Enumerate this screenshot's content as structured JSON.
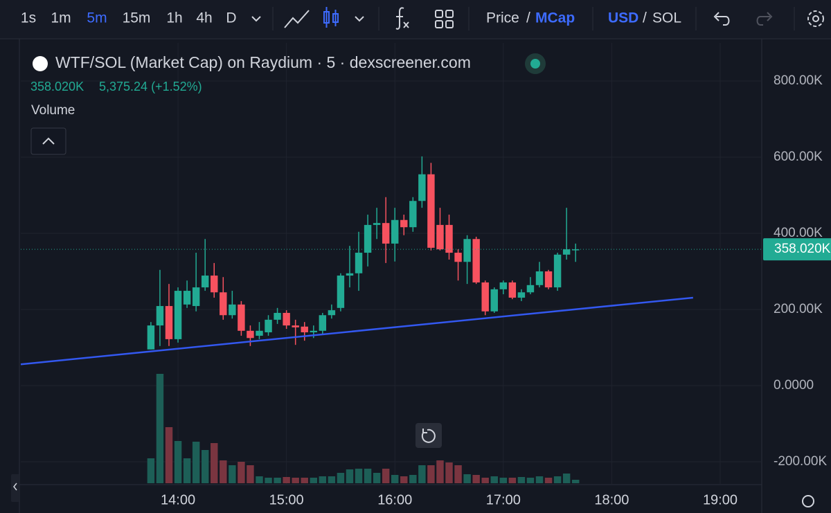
{
  "toolbar": {
    "intervals": [
      "1s",
      "1m",
      "5m",
      "15m",
      "1h",
      "4h",
      "D"
    ],
    "price_mode": [
      "Price",
      "/",
      "MCap"
    ],
    "currency": [
      "USD",
      "/",
      "SOL"
    ]
  },
  "chart_data": {
    "type": "candlestick",
    "title": "WTF/SOL (Market Cap) on Raydium · 5 · dexscreener.com",
    "legend_values": [
      "358.020K",
      "5,375.24 (+1.52%)"
    ],
    "volume_label": "Volume",
    "x": [
      "13:45",
      "13:50",
      "13:55",
      "14:00",
      "14:05",
      "14:10",
      "14:15",
      "14:20",
      "14:25",
      "14:30",
      "14:35",
      "14:40",
      "14:45",
      "14:50",
      "14:55",
      "15:00",
      "15:05",
      "15:10",
      "15:15",
      "15:20",
      "15:25",
      "15:30",
      "15:35",
      "15:40",
      "15:45",
      "15:50",
      "15:55",
      "16:00",
      "16:05",
      "16:10",
      "16:15",
      "16:20",
      "16:25",
      "16:30",
      "16:35",
      "16:40",
      "16:45",
      "16:50",
      "16:55",
      "17:00",
      "17:05",
      "17:10",
      "17:15",
      "17:20",
      "17:25",
      "17:30",
      "17:35",
      "17:40"
    ],
    "open": [
      95000,
      158000,
      209000,
      122000,
      213000,
      209000,
      258000,
      289000,
      245000,
      185000,
      213000,
      144000,
      131000,
      140000,
      173000,
      191000,
      158000,
      155000,
      140000,
      144000,
      185000,
      204000,
      289000,
      295000,
      349000,
      422000,
      427000,
      373000,
      435000,
      416000,
      485000,
      555000,
      422000,
      422000,
      349000,
      325000,
      385000,
      271000,
      195000,
      253000,
      271000,
      231000,
      245000,
      264000,
      300000,
      258000,
      344000,
      356000
    ],
    "high": [
      167000,
      304000,
      267000,
      258000,
      276000,
      349000,
      385000,
      322000,
      285000,
      249000,
      222000,
      158000,
      167000,
      185000,
      204000,
      198000,
      173000,
      167000,
      158000,
      191000,
      213000,
      295000,
      367000,
      404000,
      449000,
      467000,
      495000,
      467000,
      449000,
      495000,
      602000,
      585000,
      467000,
      449000,
      358000,
      395000,
      391000,
      276000,
      258000,
      276000,
      276000,
      253000,
      285000,
      325000,
      304000,
      349000,
      467000,
      373000
    ],
    "low": [
      95000,
      104000,
      104000,
      113000,
      204000,
      195000,
      249000,
      231000,
      173000,
      176000,
      131000,
      104000,
      122000,
      131000,
      162000,
      149000,
      107000,
      118000,
      125000,
      135000,
      176000,
      195000,
      258000,
      249000,
      313000,
      385000,
      322000,
      326000,
      395000,
      404000,
      467000,
      355000,
      355000,
      331000,
      276000,
      267000,
      267000,
      185000,
      191000,
      240000,
      227000,
      222000,
      240000,
      258000,
      253000,
      249000,
      331000,
      325000
    ],
    "close": [
      158000,
      209000,
      122000,
      249000,
      249000,
      258000,
      289000,
      245000,
      185000,
      213000,
      144000,
      125000,
      144000,
      173000,
      191000,
      158000,
      153000,
      140000,
      144000,
      185000,
      198000,
      289000,
      295000,
      349000,
      422000,
      427000,
      373000,
      435000,
      416000,
      485000,
      555000,
      362000,
      358000,
      349000,
      325000,
      385000,
      271000,
      195000,
      253000,
      271000,
      231000,
      245000,
      264000,
      300000,
      258000,
      344000,
      358000,
      358020
    ],
    "volume": [
      36,
      158,
      81,
      61,
      36,
      60,
      48,
      58,
      33,
      26,
      31,
      26,
      10,
      8,
      8,
      9,
      8,
      8,
      8,
      10,
      10,
      15,
      20,
      21,
      21,
      15,
      21,
      12,
      10,
      12,
      26,
      26,
      33,
      30,
      26,
      13,
      12,
      8,
      10,
      8,
      8,
      9,
      8,
      10,
      8,
      10,
      14,
      5
    ],
    "vlim": [
      0,
      170
    ],
    "up_color": "#22ab94",
    "down_color": "#f7525f",
    "volume_up_color": "#1d5f57",
    "volume_down_color": "#7a3540",
    "xlim": [
      "12:33",
      "19:23"
    ],
    "xticks": [
      "14:00",
      "15:00",
      "16:00",
      "17:00",
      "18:00",
      "19:00"
    ],
    "ylim": [
      -260000,
      900000
    ],
    "yticks": [
      {
        "value": 800000,
        "label": "800.00K"
      },
      {
        "value": 600000,
        "label": "600.00K"
      },
      {
        "value": 400000,
        "label": "400.00K"
      },
      {
        "value": 200000,
        "label": "200.00K"
      },
      {
        "value": 0,
        "label": "0.0000"
      },
      {
        "value": -200000,
        "label": "-200.00K"
      }
    ],
    "grid": true,
    "last_value": 358020,
    "last_label": "358.020K",
    "trendline": {
      "x": [
        "12:33",
        "18:45"
      ],
      "values": [
        56000,
        231000
      ],
      "color": "#3358f0"
    }
  }
}
